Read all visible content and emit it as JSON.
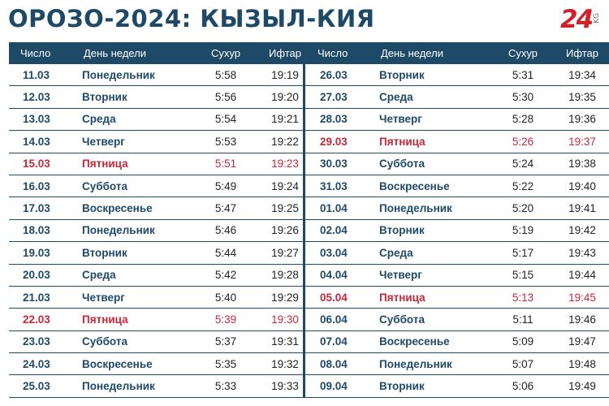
{
  "title": "ОРОЗО-2024: КЫЗЫЛ-КИЯ",
  "logo": {
    "number": "24",
    "suffix": "KG"
  },
  "columns": {
    "date": "Число",
    "day": "День недели",
    "suhur": "Сухур",
    "iftar": "Ифтар"
  },
  "left_rows": [
    {
      "date": "11.03",
      "day": "Понедельник",
      "suhur": "5:58",
      "iftar": "19:19",
      "friday": false
    },
    {
      "date": "12.03",
      "day": "Вторник",
      "suhur": "5:56",
      "iftar": "19:20",
      "friday": false
    },
    {
      "date": "13.03",
      "day": "Среда",
      "suhur": "5:54",
      "iftar": "19:21",
      "friday": false
    },
    {
      "date": "14.03",
      "day": "Четверг",
      "suhur": "5:53",
      "iftar": "19:22",
      "friday": false
    },
    {
      "date": "15.03",
      "day": "Пятница",
      "suhur": "5:51",
      "iftar": "19:23",
      "friday": true
    },
    {
      "date": "16.03",
      "day": "Суббота",
      "suhur": "5:49",
      "iftar": "19:24",
      "friday": false
    },
    {
      "date": "17.03",
      "day": "Воскресенье",
      "suhur": "5:47",
      "iftar": "19:25",
      "friday": false
    },
    {
      "date": "18.03",
      "day": "Понедельник",
      "suhur": "5:46",
      "iftar": "19:26",
      "friday": false
    },
    {
      "date": "19.03",
      "day": "Вторник",
      "suhur": "5:44",
      "iftar": "19:27",
      "friday": false
    },
    {
      "date": "20.03",
      "day": "Среда",
      "suhur": "5:42",
      "iftar": "19:28",
      "friday": false
    },
    {
      "date": "21.03",
      "day": "Четверг",
      "suhur": "5:40",
      "iftar": "19:29",
      "friday": false
    },
    {
      "date": "22.03",
      "day": "Пятница",
      "suhur": "5:39",
      "iftar": "19:30",
      "friday": true
    },
    {
      "date": "23.03",
      "day": "Суббота",
      "suhur": "5:37",
      "iftar": "19:31",
      "friday": false
    },
    {
      "date": "24.03",
      "day": "Воскресенье",
      "suhur": "5:35",
      "iftar": "19:32",
      "friday": false
    },
    {
      "date": "25.03",
      "day": "Понедельник",
      "suhur": "5:33",
      "iftar": "19:33",
      "friday": false
    }
  ],
  "right_rows": [
    {
      "date": "26.03",
      "day": "Вторник",
      "suhur": "5:31",
      "iftar": "19:34",
      "friday": false
    },
    {
      "date": "27.03",
      "day": "Среда",
      "suhur": "5:30",
      "iftar": "19:35",
      "friday": false
    },
    {
      "date": "28.03",
      "day": "Четверг",
      "suhur": "5:28",
      "iftar": "19:36",
      "friday": false
    },
    {
      "date": "29.03",
      "day": "Пятница",
      "suhur": "5:26",
      "iftar": "19:37",
      "friday": true
    },
    {
      "date": "30.03",
      "day": "Суббота",
      "suhur": "5:24",
      "iftar": "19:38",
      "friday": false
    },
    {
      "date": "31.03",
      "day": "Воскресенье",
      "suhur": "5:22",
      "iftar": "19:40",
      "friday": false
    },
    {
      "date": "01.04",
      "day": "Понедельник",
      "suhur": "5:20",
      "iftar": "19:41",
      "friday": false
    },
    {
      "date": "02.04",
      "day": "Вторник",
      "suhur": "5:19",
      "iftar": "19:42",
      "friday": false
    },
    {
      "date": "03.04",
      "day": "Среда",
      "suhur": "5:17",
      "iftar": "19:43",
      "friday": false
    },
    {
      "date": "04.04",
      "day": "Четверг",
      "suhur": "5:15",
      "iftar": "19:44",
      "friday": false
    },
    {
      "date": "05.04",
      "day": "Пятница",
      "suhur": "5:13",
      "iftar": "19:45",
      "friday": true
    },
    {
      "date": "06.04",
      "day": "Суббота",
      "suhur": "5:11",
      "iftar": "19:46",
      "friday": false
    },
    {
      "date": "07.04",
      "day": "Воскресенье",
      "suhur": "5:09",
      "iftar": "19:47",
      "friday": false
    },
    {
      "date": "08.04",
      "day": "Понедельник",
      "suhur": "5:07",
      "iftar": "19:48",
      "friday": false
    },
    {
      "date": "09.04",
      "day": "Вторник",
      "suhur": "5:06",
      "iftar": "19:49",
      "friday": false
    }
  ],
  "colors": {
    "header_bg": "#1e4a68",
    "text_primary": "#1e4a68",
    "friday": "#c6283a",
    "logo": "#d0202a"
  }
}
